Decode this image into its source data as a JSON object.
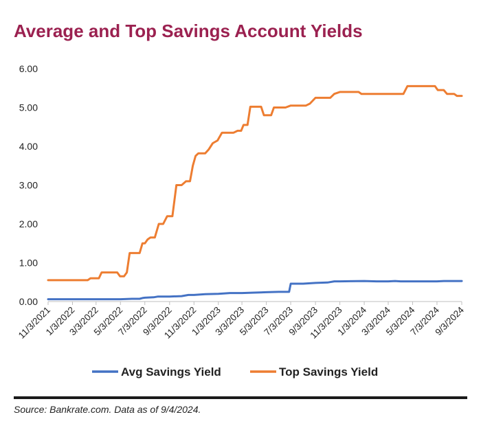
{
  "chart_data": {
    "type": "line",
    "title": "Average and Top Savings Account Yields",
    "xlabel": "",
    "ylabel": "",
    "ylim": [
      0,
      6
    ],
    "yticks": [
      "0.00",
      "1.00",
      "2.00",
      "3.00",
      "4.00",
      "5.00",
      "6.00"
    ],
    "x_start": "11/3/2021",
    "x_end": "9/3/2024",
    "xticks": [
      "11/3/2021",
      "1/3/2022",
      "3/3/2022",
      "5/3/2022",
      "7/3/2022",
      "9/3/2022",
      "11/3/2022",
      "1/3/2023",
      "3/3/2023",
      "5/3/2023",
      "7/3/2023",
      "9/3/2023",
      "11/3/2023",
      "1/3/2024",
      "3/3/2024",
      "5/3/2024",
      "7/3/2024",
      "9/3/2024"
    ],
    "grid": false,
    "legend_position": "bottom",
    "series": [
      {
        "name": "Avg Savings Yield",
        "color": "#4472c4",
        "points": [
          [
            "11/3/2021",
            0.06
          ],
          [
            "1/3/2022",
            0.06
          ],
          [
            "3/3/2022",
            0.06
          ],
          [
            "5/3/2022",
            0.06
          ],
          [
            "6/1/2022",
            0.07
          ],
          [
            "6/20/2022",
            0.07
          ],
          [
            "6/27/2022",
            0.09
          ],
          [
            "7/3/2022",
            0.1
          ],
          [
            "7/25/2022",
            0.11
          ],
          [
            "8/5/2022",
            0.13
          ],
          [
            "9/3/2022",
            0.13
          ],
          [
            "10/3/2022",
            0.14
          ],
          [
            "10/20/2022",
            0.17
          ],
          [
            "11/3/2022",
            0.17
          ],
          [
            "12/1/2022",
            0.19
          ],
          [
            "1/3/2023",
            0.2
          ],
          [
            "2/1/2023",
            0.22
          ],
          [
            "3/3/2023",
            0.22
          ],
          [
            "4/3/2023",
            0.23
          ],
          [
            "5/3/2023",
            0.24
          ],
          [
            "6/3/2023",
            0.25
          ],
          [
            "6/29/2023",
            0.25
          ],
          [
            "7/3/2023",
            0.46
          ],
          [
            "8/3/2023",
            0.46
          ],
          [
            "9/3/2023",
            0.48
          ],
          [
            "10/3/2023",
            0.49
          ],
          [
            "10/20/2023",
            0.52
          ],
          [
            "11/3/2023",
            0.52
          ],
          [
            "1/3/2024",
            0.53
          ],
          [
            "2/3/2024",
            0.52
          ],
          [
            "3/3/2024",
            0.52
          ],
          [
            "3/20/2024",
            0.53
          ],
          [
            "4/3/2024",
            0.52
          ],
          [
            "5/3/2024",
            0.52
          ],
          [
            "7/3/2024",
            0.52
          ],
          [
            "7/20/2024",
            0.53
          ],
          [
            "9/3/2024",
            0.53
          ]
        ]
      },
      {
        "name": "Top Savings Yield",
        "color": "#ed7d31",
        "points": [
          [
            "11/3/2021",
            0.55
          ],
          [
            "2/10/2022",
            0.55
          ],
          [
            "2/17/2022",
            0.6
          ],
          [
            "3/10/2022",
            0.6
          ],
          [
            "3/17/2022",
            0.75
          ],
          [
            "4/25/2022",
            0.75
          ],
          [
            "5/2/2022",
            0.65
          ],
          [
            "5/12/2022",
            0.65
          ],
          [
            "5/19/2022",
            0.75
          ],
          [
            "5/26/2022",
            1.25
          ],
          [
            "6/20/2022",
            1.25
          ],
          [
            "6/27/2022",
            1.5
          ],
          [
            "7/3/2022",
            1.5
          ],
          [
            "7/10/2022",
            1.6
          ],
          [
            "7/17/2022",
            1.65
          ],
          [
            "7/28/2022",
            1.65
          ],
          [
            "8/7/2022",
            2.0
          ],
          [
            "8/18/2022",
            2.0
          ],
          [
            "8/28/2022",
            2.2
          ],
          [
            "9/10/2022",
            2.2
          ],
          [
            "9/20/2022",
            3.0
          ],
          [
            "10/3/2022",
            3.0
          ],
          [
            "10/14/2022",
            3.1
          ],
          [
            "10/24/2022",
            3.1
          ],
          [
            "10/31/2022",
            3.5
          ],
          [
            "11/7/2022",
            3.75
          ],
          [
            "11/14/2022",
            3.82
          ],
          [
            "12/1/2022",
            3.82
          ],
          [
            "12/10/2022",
            3.92
          ],
          [
            "12/20/2022",
            4.08
          ],
          [
            "1/1/2023",
            4.15
          ],
          [
            "1/12/2023",
            4.35
          ],
          [
            "2/10/2023",
            4.35
          ],
          [
            "2/20/2023",
            4.4
          ],
          [
            "3/1/2023",
            4.4
          ],
          [
            "3/7/2023",
            4.55
          ],
          [
            "3/17/2023",
            4.55
          ],
          [
            "3/24/2023",
            5.02
          ],
          [
            "4/20/2023",
            5.02
          ],
          [
            "4/27/2023",
            4.8
          ],
          [
            "5/15/2023",
            4.8
          ],
          [
            "5/22/2023",
            5.0
          ],
          [
            "6/20/2023",
            5.0
          ],
          [
            "7/3/2023",
            5.05
          ],
          [
            "8/10/2023",
            5.05
          ],
          [
            "8/20/2023",
            5.1
          ],
          [
            "9/3/2023",
            5.25
          ],
          [
            "10/10/2023",
            5.25
          ],
          [
            "10/20/2023",
            5.35
          ],
          [
            "11/3/2023",
            5.4
          ],
          [
            "12/20/2023",
            5.4
          ],
          [
            "12/27/2023",
            5.35
          ],
          [
            "4/10/2024",
            5.35
          ],
          [
            "4/20/2024",
            5.55
          ],
          [
            "6/28/2024",
            5.55
          ],
          [
            "7/5/2024",
            5.45
          ],
          [
            "7/20/2024",
            5.45
          ],
          [
            "7/28/2024",
            5.35
          ],
          [
            "8/15/2024",
            5.35
          ],
          [
            "8/22/2024",
            5.3
          ],
          [
            "9/3/2024",
            5.3
          ]
        ]
      }
    ]
  },
  "source": "Source: Bankrate.com. Data as of 9/4/2024."
}
